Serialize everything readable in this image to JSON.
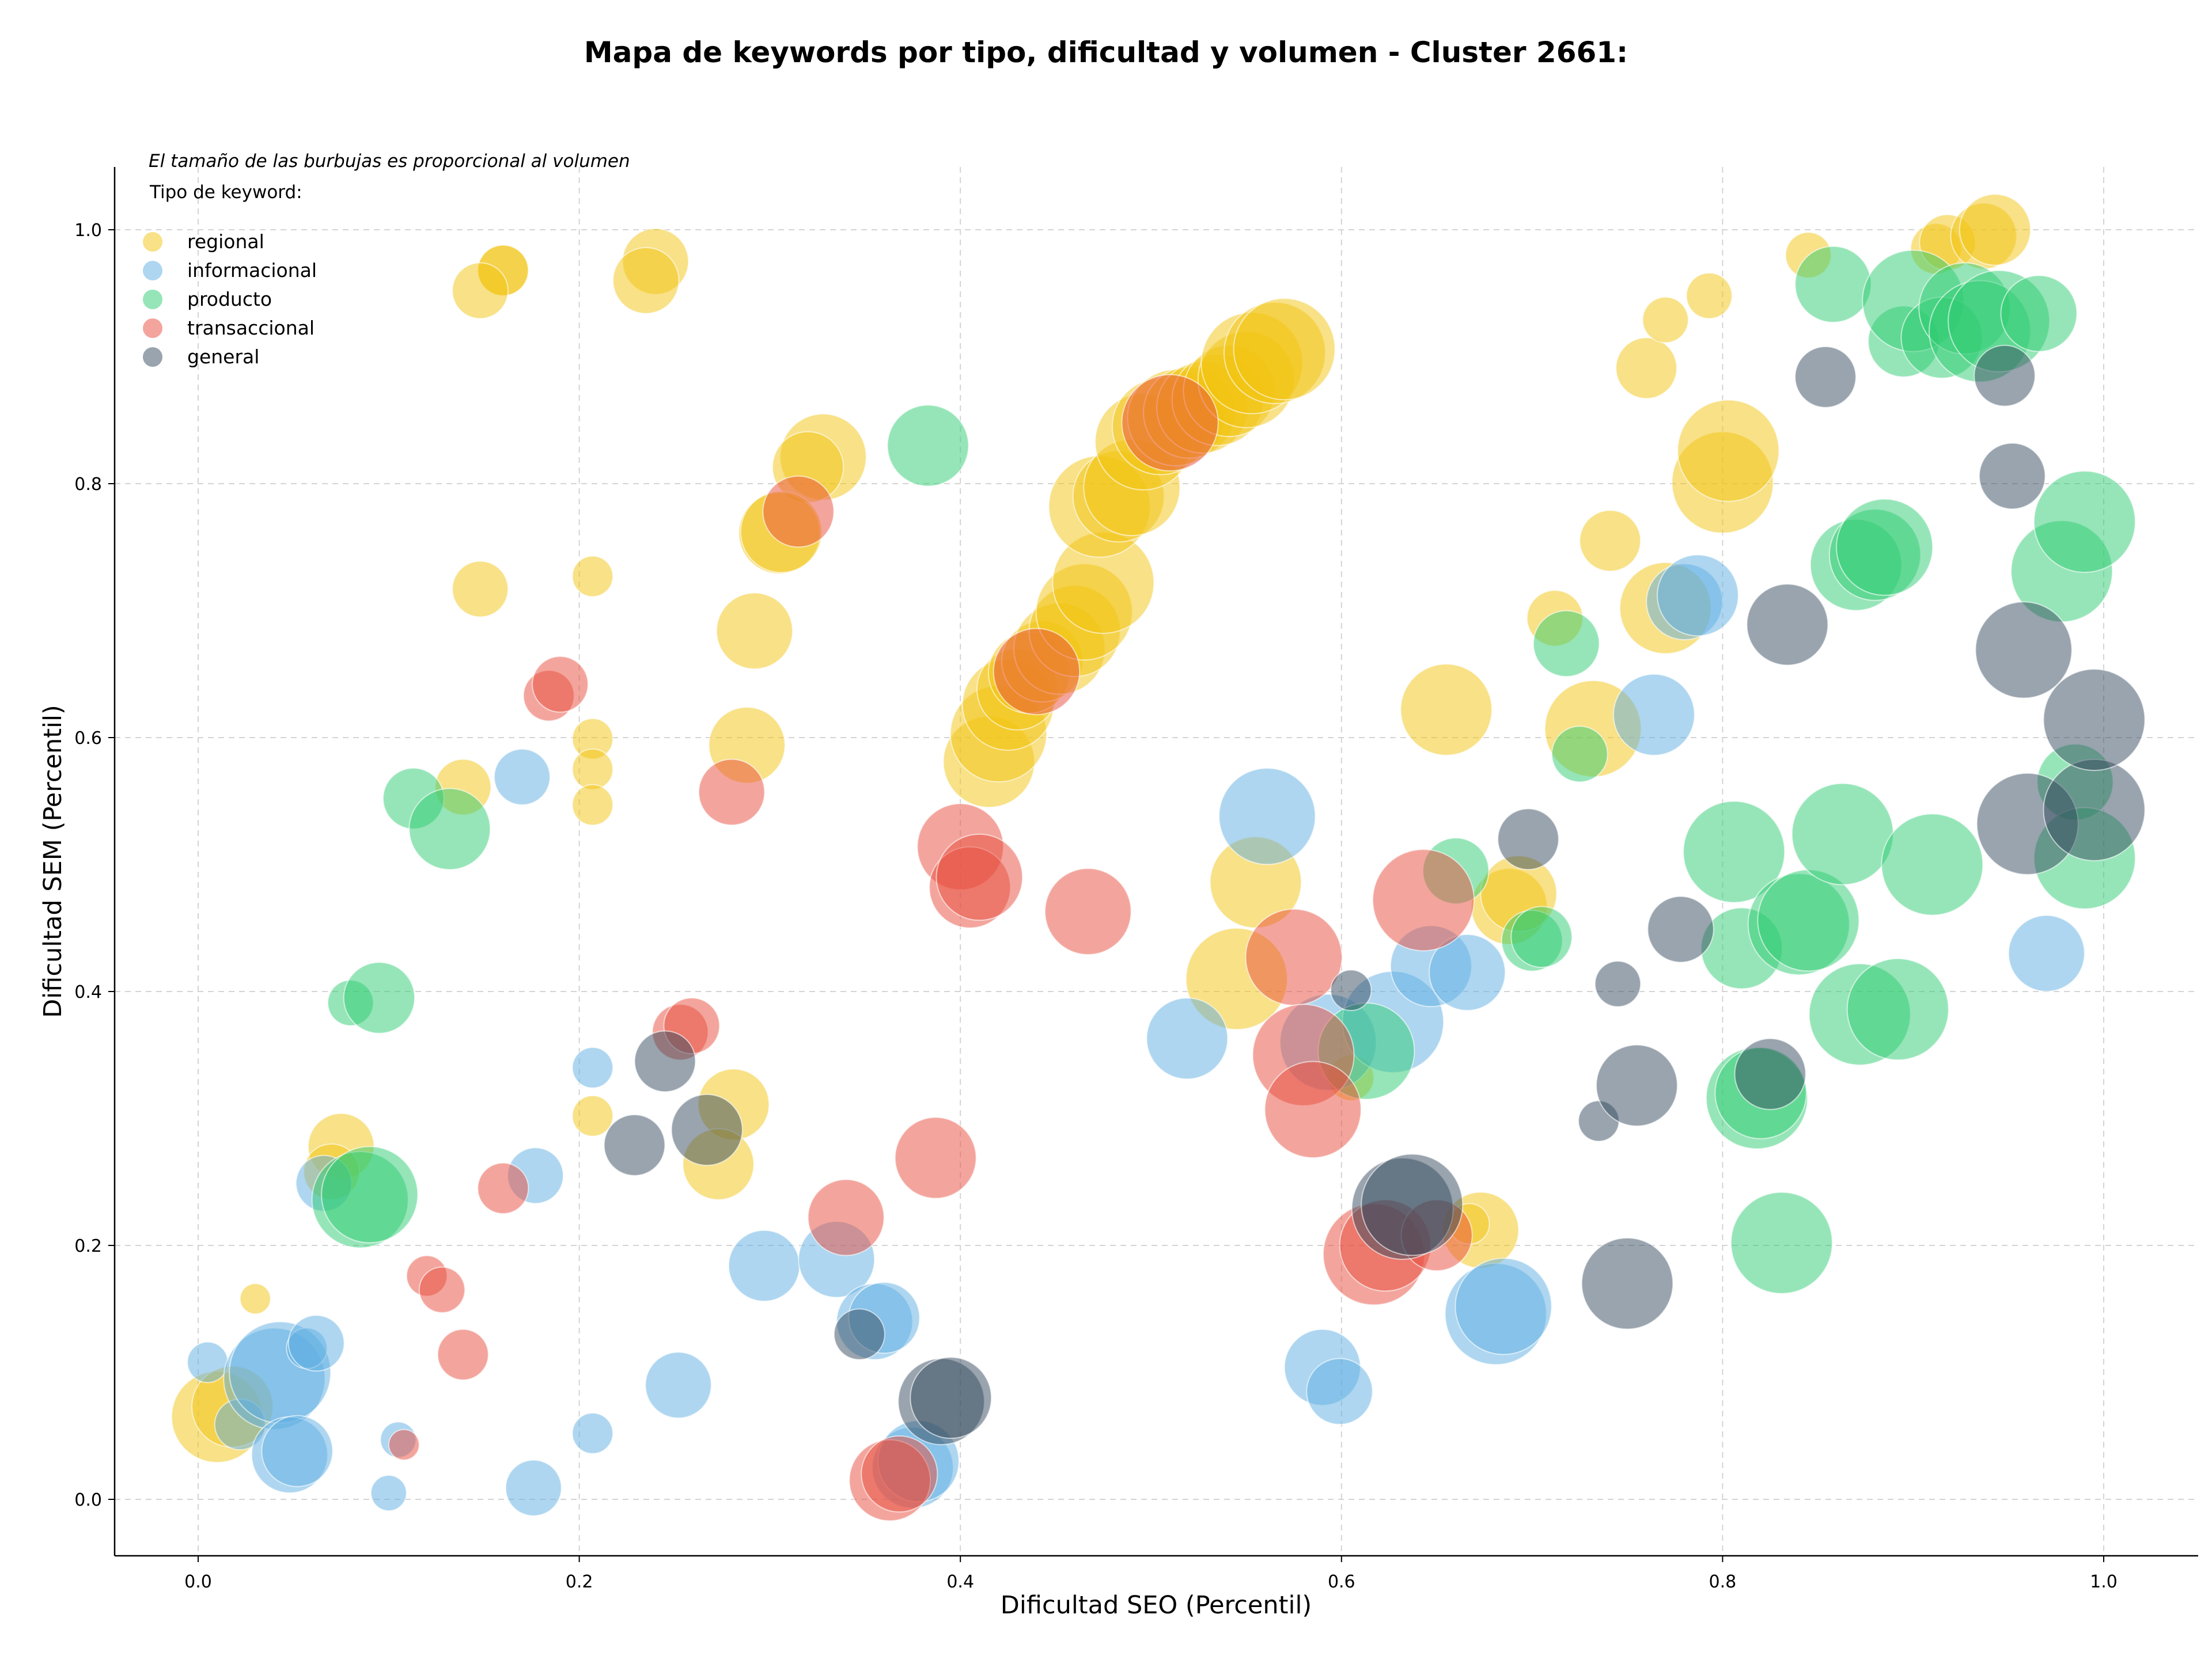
{
  "chart_data": {
    "type": "scatter",
    "subtype": "bubble",
    "title": "Mapa de keywords por tipo, dificultad y volumen - Cluster 2661:",
    "annotation": "El tamaño de las burbujas es proporcional al volumen",
    "xlabel": "Dificultad SEO (Percentil)",
    "ylabel": "Dificultad SEM (Percentil)",
    "xlim": [
      -0.045,
      1.05
    ],
    "ylim": [
      -0.045,
      1.05
    ],
    "xticks": [
      0.0,
      0.2,
      0.4,
      0.6,
      0.8,
      1.0
    ],
    "yticks": [
      0.0,
      0.2,
      0.4,
      0.6,
      0.8,
      1.0
    ],
    "tick_labels": [
      "0.0",
      "0.2",
      "0.4",
      "0.6",
      "0.8",
      "1.0"
    ],
    "grid": true,
    "legend_title": "Tipo de keyword:",
    "legend_position": "upper-left",
    "series": [
      {
        "name": "regional",
        "color": "#f1c40f",
        "points": [
          [
            0.24,
            0.975,
            1.3
          ],
          [
            0.235,
            0.96,
            1.3
          ],
          [
            0.16,
            0.968,
            1.0
          ],
          [
            0.16,
            0.968,
            1.0
          ],
          [
            0.148,
            0.952,
            1.1
          ],
          [
            0.148,
            0.717,
            1.1
          ],
          [
            0.207,
            0.727,
            0.8
          ],
          [
            0.207,
            0.599,
            0.8
          ],
          [
            0.207,
            0.575,
            0.8
          ],
          [
            0.207,
            0.547,
            0.8
          ],
          [
            0.139,
            0.561,
            1.1
          ],
          [
            0.207,
            0.302,
            0.8
          ],
          [
            0.281,
            0.311,
            1.4
          ],
          [
            0.273,
            0.264,
            1.4
          ],
          [
            0.075,
            0.278,
            1.3
          ],
          [
            0.07,
            0.258,
            1.1
          ],
          [
            0.03,
            0.158,
            0.6
          ],
          [
            0.01,
            0.065,
            1.8
          ],
          [
            0.018,
            0.073,
            1.6
          ],
          [
            0.328,
            0.821,
            1.7
          ],
          [
            0.32,
            0.813,
            1.4
          ],
          [
            0.305,
            0.761,
            1.6
          ],
          [
            0.306,
            0.762,
            1.6
          ],
          [
            0.292,
            0.684,
            1.5
          ],
          [
            0.288,
            0.594,
            1.5
          ],
          [
            0.415,
            0.581,
            1.8
          ],
          [
            0.42,
            0.603,
            1.9
          ],
          [
            0.425,
            0.626,
            1.8
          ],
          [
            0.43,
            0.638,
            1.6
          ],
          [
            0.436,
            0.651,
            1.6
          ],
          [
            0.443,
            0.66,
            1.6
          ],
          [
            0.452,
            0.67,
            1.8
          ],
          [
            0.46,
            0.684,
            1.8
          ],
          [
            0.465,
            0.699,
            1.9
          ],
          [
            0.475,
            0.722,
            2.0
          ],
          [
            0.473,
            0.782,
            2.0
          ],
          [
            0.483,
            0.79,
            1.8
          ],
          [
            0.49,
            0.797,
            1.9
          ],
          [
            0.496,
            0.833,
            1.9
          ],
          [
            0.505,
            0.845,
            1.9
          ],
          [
            0.513,
            0.852,
            1.9
          ],
          [
            0.52,
            0.856,
            1.8
          ],
          [
            0.527,
            0.86,
            1.8
          ],
          [
            0.535,
            0.866,
            1.8
          ],
          [
            0.541,
            0.873,
            1.8
          ],
          [
            0.55,
            0.882,
            1.9
          ],
          [
            0.553,
            0.895,
            2.0
          ],
          [
            0.565,
            0.903,
            2.0
          ],
          [
            0.57,
            0.906,
            2.0
          ],
          [
            0.545,
            0.41,
            2.0
          ],
          [
            0.555,
            0.486,
            1.8
          ],
          [
            0.605,
            0.332,
            0.9
          ],
          [
            0.655,
            0.622,
            1.8
          ],
          [
            0.673,
            0.212,
            1.5
          ],
          [
            0.667,
            0.217,
            0.8
          ],
          [
            0.688,
            0.467,
            1.5
          ],
          [
            0.693,
            0.477,
            1.5
          ],
          [
            0.712,
            0.694,
            1.1
          ],
          [
            0.741,
            0.755,
            1.2
          ],
          [
            0.732,
            0.607,
            1.9
          ],
          [
            0.77,
            0.702,
            1.8
          ],
          [
            0.76,
            0.891,
            1.2
          ],
          [
            0.77,
            0.929,
            0.9
          ],
          [
            0.793,
            0.948,
            0.9
          ],
          [
            0.8,
            0.801,
            2.0
          ],
          [
            0.803,
            0.826,
            2.0
          ],
          [
            0.845,
            0.98,
            0.9
          ],
          [
            0.912,
            0.985,
            1.0
          ],
          [
            0.918,
            0.99,
            1.1
          ],
          [
            0.937,
            0.995,
            1.3
          ],
          [
            0.943,
            1.0,
            1.4
          ]
        ]
      },
      {
        "name": "informacional",
        "color": "#5dade2",
        "points": [
          [
            0.005,
            0.108,
            0.8
          ],
          [
            0.022,
            0.059,
            1.0
          ],
          [
            0.04,
            0.095,
            2.0
          ],
          [
            0.043,
            0.1,
            2.0
          ],
          [
            0.057,
            0.119,
            0.8
          ],
          [
            0.062,
            0.123,
            1.1
          ],
          [
            0.066,
            0.249,
            1.1
          ],
          [
            0.048,
            0.035,
            1.5
          ],
          [
            0.052,
            0.038,
            1.4
          ],
          [
            0.1,
            0.005,
            0.7
          ],
          [
            0.105,
            0.047,
            0.7
          ],
          [
            0.176,
            0.009,
            1.1
          ],
          [
            0.207,
            0.052,
            0.8
          ],
          [
            0.17,
            0.569,
            1.1
          ],
          [
            0.177,
            0.255,
            1.1
          ],
          [
            0.207,
            0.34,
            0.8
          ],
          [
            0.252,
            0.09,
            1.3
          ],
          [
            0.297,
            0.184,
            1.4
          ],
          [
            0.335,
            0.189,
            1.5
          ],
          [
            0.355,
            0.14,
            1.5
          ],
          [
            0.36,
            0.143,
            1.4
          ],
          [
            0.375,
            0.025,
            1.6
          ],
          [
            0.378,
            0.03,
            1.6
          ],
          [
            0.519,
            0.363,
            1.6
          ],
          [
            0.561,
            0.538,
            1.9
          ],
          [
            0.59,
            0.104,
            1.5
          ],
          [
            0.599,
            0.085,
            1.3
          ],
          [
            0.593,
            0.36,
            1.9
          ],
          [
            0.627,
            0.376,
            2.0
          ],
          [
            0.647,
            0.42,
            1.6
          ],
          [
            0.666,
            0.415,
            1.5
          ],
          [
            0.681,
            0.146,
            2.0
          ],
          [
            0.685,
            0.152,
            1.9
          ],
          [
            0.764,
            0.618,
            1.6
          ],
          [
            0.78,
            0.707,
            1.5
          ],
          [
            0.787,
            0.712,
            1.6
          ],
          [
            0.97,
            0.43,
            1.5
          ]
        ]
      },
      {
        "name": "producto",
        "color": "#2ecc71",
        "points": [
          [
            0.08,
            0.391,
            0.9
          ],
          [
            0.095,
            0.395,
            1.4
          ],
          [
            0.085,
            0.236,
            1.9
          ],
          [
            0.09,
            0.24,
            1.9
          ],
          [
            0.113,
            0.552,
            1.2
          ],
          [
            0.132,
            0.528,
            1.6
          ],
          [
            0.383,
            0.83,
            1.6
          ],
          [
            0.613,
            0.353,
            1.9
          ],
          [
            0.66,
            0.495,
            1.3
          ],
          [
            0.7,
            0.44,
            1.2
          ],
          [
            0.705,
            0.443,
            1.2
          ],
          [
            0.718,
            0.674,
            1.3
          ],
          [
            0.725,
            0.587,
            1.1
          ],
          [
            0.81,
            0.434,
            1.6
          ],
          [
            0.806,
            0.51,
            2.0
          ],
          [
            0.818,
            0.316,
            2.0
          ],
          [
            0.82,
            0.32,
            1.8
          ],
          [
            0.831,
            0.202,
            2.0
          ],
          [
            0.84,
            0.453,
            2.0
          ],
          [
            0.845,
            0.456,
            2.0
          ],
          [
            0.858,
            0.957,
            1.5
          ],
          [
            0.863,
            0.524,
            2.0
          ],
          [
            0.872,
            0.382,
            2.0
          ],
          [
            0.892,
            0.386,
            2.0
          ],
          [
            0.87,
            0.736,
            1.8
          ],
          [
            0.88,
            0.744,
            1.8
          ],
          [
            0.885,
            0.75,
            1.9
          ],
          [
            0.895,
            0.912,
            1.4
          ],
          [
            0.9,
            0.944,
            2.0
          ],
          [
            0.91,
            0.5,
            2.0
          ],
          [
            0.915,
            0.915,
            1.6
          ],
          [
            0.927,
            0.938,
            1.8
          ],
          [
            0.935,
            0.92,
            2.0
          ],
          [
            0.945,
            0.928,
            2.0
          ],
          [
            0.966,
            0.934,
            1.5
          ],
          [
            0.978,
            0.731,
            2.0
          ],
          [
            0.985,
            0.565,
            1.5
          ],
          [
            0.99,
            0.505,
            2.0
          ],
          [
            0.99,
            0.77,
            2.0
          ]
        ]
      },
      {
        "name": "transaccional",
        "color": "#e74c3c",
        "points": [
          [
            0.108,
            0.043,
            0.6
          ],
          [
            0.12,
            0.176,
            0.8
          ],
          [
            0.128,
            0.165,
            0.9
          ],
          [
            0.139,
            0.114,
            1.0
          ],
          [
            0.16,
            0.245,
            1.0
          ],
          [
            0.184,
            0.633,
            1.0
          ],
          [
            0.19,
            0.642,
            1.1
          ],
          [
            0.253,
            0.368,
            1.1
          ],
          [
            0.259,
            0.373,
            1.1
          ],
          [
            0.28,
            0.557,
            1.3
          ],
          [
            0.315,
            0.778,
            1.4
          ],
          [
            0.34,
            0.222,
            1.5
          ],
          [
            0.363,
            0.015,
            1.6
          ],
          [
            0.368,
            0.02,
            1.5
          ],
          [
            0.387,
            0.269,
            1.6
          ],
          [
            0.4,
            0.514,
            1.7
          ],
          [
            0.405,
            0.482,
            1.6
          ],
          [
            0.41,
            0.49,
            1.7
          ],
          [
            0.44,
            0.652,
            1.7
          ],
          [
            0.467,
            0.463,
            1.7
          ],
          [
            0.51,
            0.848,
            1.9
          ],
          [
            0.575,
            0.427,
            1.9
          ],
          [
            0.58,
            0.35,
            2.0
          ],
          [
            0.585,
            0.307,
            1.9
          ],
          [
            0.617,
            0.193,
            2.0
          ],
          [
            0.623,
            0.2,
            1.8
          ],
          [
            0.643,
            0.472,
            2.0
          ],
          [
            0.65,
            0.208,
            1.4
          ]
        ]
      },
      {
        "name": "general",
        "color": "#34495e",
        "points": [
          [
            0.229,
            0.279,
            1.2
          ],
          [
            0.245,
            0.345,
            1.2
          ],
          [
            0.267,
            0.291,
            1.4
          ],
          [
            0.347,
            0.13,
            1.0
          ],
          [
            0.39,
            0.077,
            1.7
          ],
          [
            0.395,
            0.08,
            1.6
          ],
          [
            0.605,
            0.401,
            0.8
          ],
          [
            0.632,
            0.229,
            2.0
          ],
          [
            0.637,
            0.232,
            2.0
          ],
          [
            0.698,
            0.52,
            1.2
          ],
          [
            0.735,
            0.298,
            0.8
          ],
          [
            0.745,
            0.406,
            0.9
          ],
          [
            0.75,
            0.17,
            1.8
          ],
          [
            0.755,
            0.326,
            1.6
          ],
          [
            0.778,
            0.449,
            1.3
          ],
          [
            0.825,
            0.335,
            1.4
          ],
          [
            0.834,
            0.689,
            1.6
          ],
          [
            0.854,
            0.884,
            1.2
          ],
          [
            0.948,
            0.885,
            1.2
          ],
          [
            0.952,
            0.806,
            1.3
          ],
          [
            0.96,
            0.532,
            2.0
          ],
          [
            0.958,
            0.669,
            1.9
          ],
          [
            0.995,
            0.543,
            2.0
          ],
          [
            0.995,
            0.614,
            2.0
          ]
        ]
      }
    ]
  }
}
